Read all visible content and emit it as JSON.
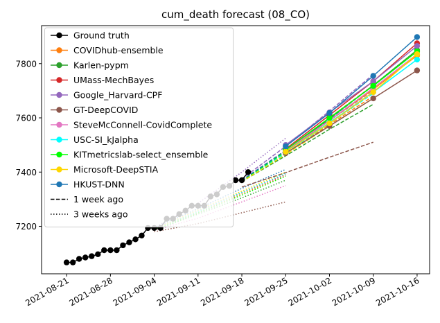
{
  "chart_data": {
    "type": "line",
    "title": "cum_death forecast (08_CO)",
    "xlabel": "",
    "ylabel": "",
    "x_axis": {
      "type": "date",
      "range": [
        "2021-08-17",
        "2021-10-18"
      ],
      "ticks": [
        "2021-08-21",
        "2021-08-28",
        "2021-09-04",
        "2021-09-11",
        "2021-09-18",
        "2021-09-25",
        "2021-10-02",
        "2021-10-09",
        "2021-10-16"
      ]
    },
    "y_axis": {
      "range": [
        7025,
        7940
      ],
      "ticks": [
        7200,
        7400,
        7600,
        7800
      ]
    },
    "grid": false,
    "legend_position": "upper left",
    "legend": [
      {
        "label": "Ground truth",
        "color": "#000000",
        "style": "solid",
        "marker": true
      },
      {
        "label": "COVIDhub-ensemble",
        "color": "#ff7f0e",
        "style": "solid",
        "marker": true
      },
      {
        "label": "Karlen-pypm",
        "color": "#2ca02c",
        "style": "solid",
        "marker": true
      },
      {
        "label": "UMass-MechBayes",
        "color": "#d62728",
        "style": "solid",
        "marker": true
      },
      {
        "label": "Google_Harvard-CPF",
        "color": "#9467bd",
        "style": "solid",
        "marker": true
      },
      {
        "label": "GT-DeepCOVID",
        "color": "#8c564b",
        "style": "solid",
        "marker": true
      },
      {
        "label": "SteveMcConnell-CovidComplete",
        "color": "#e377c2",
        "style": "solid",
        "marker": true
      },
      {
        "label": "USC-SI_kJalpha",
        "color": "#00ffff",
        "style": "solid",
        "marker": true
      },
      {
        "label": "KITmetricslab-select_ensemble",
        "color": "#00ff00",
        "style": "solid",
        "marker": true
      },
      {
        "label": "Microsoft-DeepSTIA",
        "color": "#ffd700",
        "style": "solid",
        "marker": true
      },
      {
        "label": "HKUST-DNN",
        "color": "#1f77b4",
        "style": "solid",
        "marker": true
      },
      {
        "label": "1 week ago",
        "color": "#000000",
        "style": "dashed",
        "marker": false
      },
      {
        "label": "3 weeks ago",
        "color": "#000000",
        "style": "dotted",
        "marker": false
      }
    ],
    "ground_truth": {
      "name": "Ground truth",
      "color": "#000000",
      "x": [
        "2021-08-21",
        "2021-08-22",
        "2021-08-23",
        "2021-08-24",
        "2021-08-25",
        "2021-08-26",
        "2021-08-27",
        "2021-08-28",
        "2021-08-29",
        "2021-08-30",
        "2021-08-31",
        "2021-09-01",
        "2021-09-02",
        "2021-09-03",
        "2021-09-04",
        "2021-09-05",
        "2021-09-06",
        "2021-09-07",
        "2021-09-08",
        "2021-09-09",
        "2021-09-10",
        "2021-09-11",
        "2021-09-12",
        "2021-09-13",
        "2021-09-14",
        "2021-09-15",
        "2021-09-16",
        "2021-09-17",
        "2021-09-18",
        "2021-09-19"
      ],
      "y": [
        7067,
        7067,
        7080,
        7085,
        7090,
        7097,
        7112,
        7112,
        7112,
        7130,
        7141,
        7152,
        7166,
        7194,
        7194,
        7194,
        7228,
        7228,
        7245,
        7258,
        7276,
        7276,
        7276,
        7310,
        7318,
        7345,
        7349,
        7370,
        7370,
        7400
      ]
    },
    "forecasts_current": [
      {
        "name": "COVIDhub-ensemble",
        "color": "#ff7f0e",
        "x": [
          "2021-09-25",
          "2021-10-02",
          "2021-10-09",
          "2021-10-16"
        ],
        "y": [
          7475,
          7590,
          7705,
          7830
        ]
      },
      {
        "name": "Karlen-pypm",
        "color": "#2ca02c",
        "x": [
          "2021-09-25",
          "2021-10-02",
          "2021-10-09",
          "2021-10-16"
        ],
        "y": [
          7478,
          7597,
          7720,
          7850
        ]
      },
      {
        "name": "UMass-MechBayes",
        "color": "#d62728",
        "x": [
          "2021-09-25",
          "2021-10-02",
          "2021-10-09",
          "2021-10-16"
        ],
        "y": [
          7485,
          7610,
          7735,
          7875
        ]
      },
      {
        "name": "Google_Harvard-CPF",
        "color": "#9467bd",
        "x": [
          "2021-09-25",
          "2021-10-02",
          "2021-10-09",
          "2021-10-16"
        ],
        "y": [
          7500,
          7620,
          7735,
          7865
        ]
      },
      {
        "name": "GT-DeepCOVID",
        "color": "#8c564b",
        "x": [
          "2021-09-25",
          "2021-10-02",
          "2021-10-09",
          "2021-10-16"
        ],
        "y": [
          7470,
          7570,
          7672,
          7775
        ]
      },
      {
        "name": "SteveMcConnell-CovidComplete",
        "color": "#e377c2",
        "x": [
          "2021-09-25",
          "2021-10-02",
          "2021-10-09",
          "2021-10-16"
        ],
        "y": [
          7480,
          7590,
          7710,
          7835
        ]
      },
      {
        "name": "USC-SI_kJalpha",
        "color": "#00ffff",
        "x": [
          "2021-09-25",
          "2021-10-02",
          "2021-10-09",
          "2021-10-16"
        ],
        "y": [
          7475,
          7583,
          7695,
          7815
        ]
      },
      {
        "name": "KITmetricslab-select_ensemble",
        "color": "#00ff00",
        "x": [
          "2021-09-25",
          "2021-10-02",
          "2021-10-09",
          "2021-10-16"
        ],
        "y": [
          7482,
          7600,
          7718,
          7845
        ]
      },
      {
        "name": "Microsoft-DeepSTIA",
        "color": "#ffd700",
        "x": [
          "2021-09-25",
          "2021-10-02",
          "2021-10-09",
          "2021-10-16"
        ],
        "y": [
          7475,
          7580,
          7695,
          7835
        ]
      },
      {
        "name": "HKUST-DNN",
        "color": "#1f77b4",
        "x": [
          "2021-09-25",
          "2021-10-02",
          "2021-10-09",
          "2021-10-16"
        ],
        "y": [
          7495,
          7618,
          7755,
          7898
        ]
      }
    ],
    "forecasts_1_week_ago": [
      {
        "name": "COVIDhub-ensemble",
        "color": "#ff7f0e",
        "x": [
          "2021-09-18",
          "2021-09-25",
          "2021-10-02",
          "2021-10-09"
        ],
        "y": [
          7365,
          7470,
          7575,
          7680
        ]
      },
      {
        "name": "Karlen-pypm",
        "color": "#2ca02c",
        "x": [
          "2021-09-18",
          "2021-09-25",
          "2021-10-02",
          "2021-10-09"
        ],
        "y": [
          7365,
          7460,
          7558,
          7650
        ]
      },
      {
        "name": "UMass-MechBayes",
        "color": "#d62728",
        "x": [
          "2021-09-18",
          "2021-09-25",
          "2021-10-02",
          "2021-10-09"
        ],
        "y": [
          7370,
          7480,
          7600,
          7720
        ]
      },
      {
        "name": "Google_Harvard-CPF",
        "color": "#9467bd",
        "x": [
          "2021-09-18",
          "2021-09-25",
          "2021-10-02",
          "2021-10-09"
        ],
        "y": [
          7375,
          7495,
          7625,
          7760
        ]
      },
      {
        "name": "GT-DeepCOVID",
        "color": "#8c564b",
        "x": [
          "2021-09-18",
          "2021-09-25",
          "2021-10-02",
          "2021-10-09"
        ],
        "y": [
          7345,
          7398,
          7455,
          7510
        ]
      },
      {
        "name": "SteveMcConnell-CovidComplete",
        "color": "#e377c2",
        "x": [
          "2021-09-18",
          "2021-09-25",
          "2021-10-02",
          "2021-10-09"
        ],
        "y": [
          7368,
          7478,
          7590,
          7700
        ]
      },
      {
        "name": "USC-SI_kJalpha",
        "color": "#00ffff",
        "x": [
          "2021-09-18",
          "2021-09-25",
          "2021-10-02",
          "2021-10-09"
        ],
        "y": [
          7365,
          7470,
          7580,
          7690
        ]
      },
      {
        "name": "KITmetricslab-select_ensemble",
        "color": "#00ff00",
        "x": [
          "2021-09-18",
          "2021-09-25",
          "2021-10-02",
          "2021-10-09"
        ],
        "y": [
          7368,
          7475,
          7590,
          7705
        ]
      },
      {
        "name": "Microsoft-DeepSTIA",
        "color": "#ffd700",
        "x": [
          "2021-09-18",
          "2021-09-25",
          "2021-10-02",
          "2021-10-09"
        ],
        "y": [
          7365,
          7465,
          7570,
          7672
        ]
      },
      {
        "name": "HKUST-DNN",
        "color": "#1f77b4",
        "x": [
          "2021-09-18",
          "2021-09-25",
          "2021-10-02",
          "2021-10-09"
        ],
        "y": [
          7370,
          7480,
          7595,
          7720
        ]
      }
    ],
    "forecasts_3_weeks_ago": [
      {
        "name": "COVIDhub-ensemble",
        "color": "#ff7f0e",
        "x": [
          "2021-09-04",
          "2021-09-11",
          "2021-09-18",
          "2021-09-25"
        ],
        "y": [
          7190,
          7250,
          7320,
          7385
        ]
      },
      {
        "name": "Karlen-pypm",
        "color": "#2ca02c",
        "x": [
          "2021-09-04",
          "2021-09-11",
          "2021-09-18",
          "2021-09-25"
        ],
        "y": [
          7185,
          7245,
          7305,
          7370
        ]
      },
      {
        "name": "UMass-MechBayes",
        "color": "#d62728",
        "x": [
          "2021-09-04",
          "2021-09-11",
          "2021-09-18",
          "2021-09-25"
        ],
        "y": [
          7192,
          7255,
          7325,
          7390
        ]
      },
      {
        "name": "Google_Harvard-CPF",
        "color": "#9467bd",
        "x": [
          "2021-09-04",
          "2021-09-11",
          "2021-09-18",
          "2021-09-25"
        ],
        "y": [
          7195,
          7285,
          7400,
          7525
        ]
      },
      {
        "name": "GT-DeepCOVID",
        "color": "#8c564b",
        "x": [
          "2021-09-04",
          "2021-09-11",
          "2021-09-18",
          "2021-09-25"
        ],
        "y": [
          7180,
          7210,
          7250,
          7290
        ]
      },
      {
        "name": "SteveMcConnell-CovidComplete",
        "color": "#e377c2",
        "x": [
          "2021-09-04",
          "2021-09-11",
          "2021-09-18",
          "2021-09-25"
        ],
        "y": [
          7185,
          7230,
          7290,
          7350
        ]
      },
      {
        "name": "USC-SI_kJalpha",
        "color": "#00ffff",
        "x": [
          "2021-09-04",
          "2021-09-11",
          "2021-09-18",
          "2021-09-25"
        ],
        "y": [
          7190,
          7255,
          7325,
          7395
        ]
      },
      {
        "name": "KITmetricslab-select_ensemble",
        "color": "#00ff00",
        "x": [
          "2021-09-04",
          "2021-09-11",
          "2021-09-18",
          "2021-09-25"
        ],
        "y": [
          7188,
          7250,
          7315,
          7385
        ]
      },
      {
        "name": "Microsoft-DeepSTIA",
        "color": "#ffd700",
        "x": [
          "2021-09-04",
          "2021-09-11",
          "2021-09-18",
          "2021-09-25"
        ],
        "y": [
          7190,
          7260,
          7330,
          7400
        ]
      },
      {
        "name": "HKUST-DNN",
        "color": "#1f77b4",
        "x": [
          "2021-09-04",
          "2021-09-11",
          "2021-09-18",
          "2021-09-25"
        ],
        "y": [
          7195,
          7265,
          7340,
          7410
        ]
      }
    ]
  }
}
